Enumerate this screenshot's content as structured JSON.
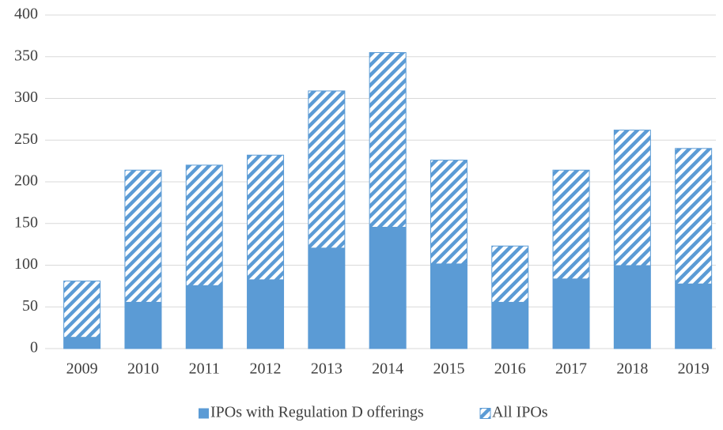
{
  "chart_data": {
    "type": "bar",
    "categories": [
      "2009",
      "2010",
      "2011",
      "2012",
      "2013",
      "2014",
      "2015",
      "2016",
      "2017",
      "2018",
      "2019"
    ],
    "series": [
      {
        "name": "IPOs with Regulation D offerings",
        "color": "#5b9bd5",
        "pattern": "solid",
        "values": [
          14,
          56,
          76,
          83,
          121,
          146,
          102,
          56,
          84,
          100,
          78
        ]
      },
      {
        "name": "All IPOs",
        "color": "#5b9bd5",
        "pattern": "hatch",
        "values": [
          81,
          214,
          220,
          232,
          309,
          355,
          226,
          123,
          214,
          262,
          240
        ]
      }
    ],
    "ylim": [
      0,
      400
    ],
    "yticks": [
      0,
      50,
      100,
      150,
      200,
      250,
      300,
      350,
      400
    ],
    "grid": true,
    "legend": "bottom"
  }
}
